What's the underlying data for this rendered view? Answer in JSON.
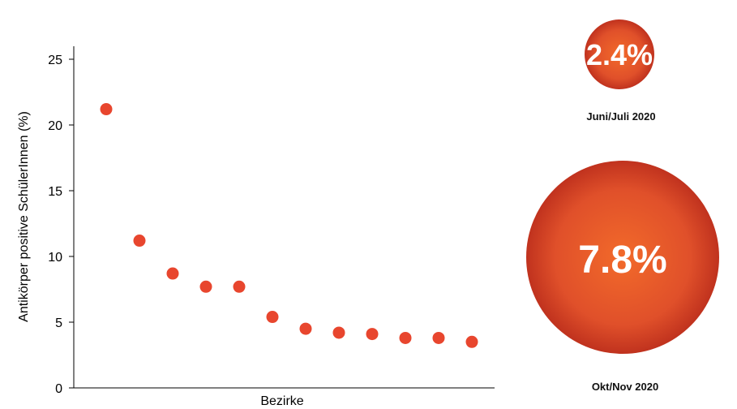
{
  "chart_data": {
    "type": "scatter",
    "ylabel": "Antikörper positive SchülerInnen (%)",
    "xlabel": "Bezirke",
    "ylim": [
      0,
      25
    ],
    "yticks": [
      0,
      5,
      10,
      15,
      20,
      25
    ],
    "grid": false,
    "marker_color": "#e8462e",
    "values": [
      21.2,
      11.2,
      8.7,
      7.7,
      7.7,
      5.4,
      4.5,
      4.2,
      4.1,
      3.8,
      3.8,
      3.5
    ]
  },
  "bubbles": [
    {
      "value_label": "2.4%",
      "value": 2.4,
      "caption": "Juni/Juli 2020"
    },
    {
      "value_label": "7.8%",
      "value": 7.8,
      "caption": "Okt/Nov 2020"
    }
  ],
  "colors": {
    "bubble_center": "#f26a2a",
    "bubble_edge": "#c0321e"
  }
}
